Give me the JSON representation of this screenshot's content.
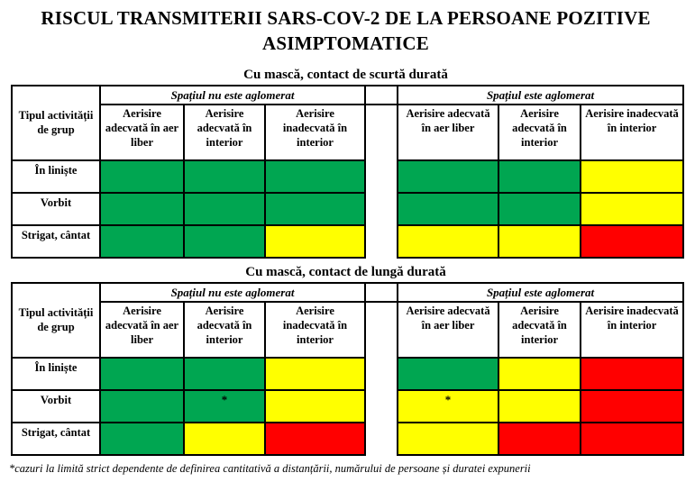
{
  "document": {
    "title": "RISCUL TRANSMITERII SARS-COV-2 DE LA PERSOANE POZITIVE ASIMPTOMATICE",
    "footnote": "*cazuri la limită strict dependente de definirea cantitativă a distanțării, numărului de persoane și duratei expunerii"
  },
  "colors": {
    "green": "#00A651",
    "yellow": "#FFFF00",
    "red": "#FF0000",
    "border": "#000000"
  },
  "header": {
    "corner": "Tipul activității de grup",
    "groups": [
      "Spațiul nu este aglomerat",
      "Spațiul este aglomerat"
    ],
    "subcolumns": [
      "Aerisire adecvată în aer liber",
      "Aerisire adecvată în interior",
      "Aerisire inadecvată în interior"
    ]
  },
  "tables": [
    {
      "id": "short-contact",
      "title": "Cu mască, contact de scurtă durată",
      "rows": [
        {
          "label": "În liniște",
          "cells": [
            {
              "color": "green",
              "marker": ""
            },
            {
              "color": "green",
              "marker": ""
            },
            {
              "color": "green",
              "marker": ""
            },
            {
              "color": "green",
              "marker": ""
            },
            {
              "color": "green",
              "marker": ""
            },
            {
              "color": "yellow",
              "marker": ""
            }
          ]
        },
        {
          "label": "Vorbit",
          "cells": [
            {
              "color": "green",
              "marker": ""
            },
            {
              "color": "green",
              "marker": ""
            },
            {
              "color": "green",
              "marker": ""
            },
            {
              "color": "green",
              "marker": ""
            },
            {
              "color": "green",
              "marker": ""
            },
            {
              "color": "yellow",
              "marker": ""
            }
          ]
        },
        {
          "label": "Strigat, cântat",
          "cells": [
            {
              "color": "green",
              "marker": ""
            },
            {
              "color": "green",
              "marker": ""
            },
            {
              "color": "yellow",
              "marker": ""
            },
            {
              "color": "yellow",
              "marker": ""
            },
            {
              "color": "yellow",
              "marker": ""
            },
            {
              "color": "red",
              "marker": ""
            }
          ]
        }
      ]
    },
    {
      "id": "long-contact",
      "title": "Cu mască, contact de lungă durată",
      "rows": [
        {
          "label": "În liniște",
          "cells": [
            {
              "color": "green",
              "marker": ""
            },
            {
              "color": "green",
              "marker": ""
            },
            {
              "color": "yellow",
              "marker": ""
            },
            {
              "color": "green",
              "marker": ""
            },
            {
              "color": "yellow",
              "marker": ""
            },
            {
              "color": "red",
              "marker": ""
            }
          ]
        },
        {
          "label": "Vorbit",
          "cells": [
            {
              "color": "green",
              "marker": ""
            },
            {
              "color": "green",
              "marker": "*"
            },
            {
              "color": "yellow",
              "marker": ""
            },
            {
              "color": "yellow",
              "marker": "*"
            },
            {
              "color": "yellow",
              "marker": ""
            },
            {
              "color": "red",
              "marker": ""
            }
          ]
        },
        {
          "label": "Strigat, cântat",
          "cells": [
            {
              "color": "green",
              "marker": ""
            },
            {
              "color": "yellow",
              "marker": ""
            },
            {
              "color": "red",
              "marker": ""
            },
            {
              "color": "yellow",
              "marker": ""
            },
            {
              "color": "red",
              "marker": ""
            },
            {
              "color": "red",
              "marker": ""
            }
          ]
        }
      ]
    }
  ]
}
